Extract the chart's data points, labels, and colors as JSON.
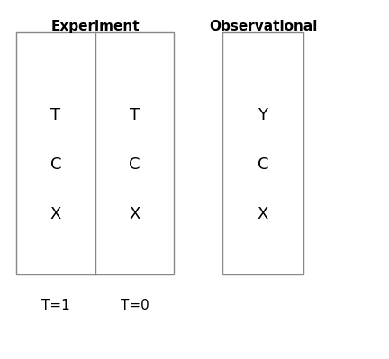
{
  "title_experiment": "Experiment",
  "title_observational": "Observational",
  "experiment_labels_left": [
    "T",
    "C",
    "X"
  ],
  "experiment_labels_right": [
    "T",
    "C",
    "X"
  ],
  "observational_labels": [
    "Y",
    "C",
    "X"
  ],
  "label_t1": "T=1",
  "label_t0": "T=0",
  "box_edge_color": "#888888",
  "box_face_color": "#ffffff",
  "divider_color": "#888888",
  "title_fontsize": 11,
  "label_fontsize": 13,
  "sublabel_fontsize": 11,
  "text_color": "#000000",
  "bg_color": "#ffffff",
  "fig_w": 4.32,
  "fig_h": 3.99,
  "dpi": 100
}
